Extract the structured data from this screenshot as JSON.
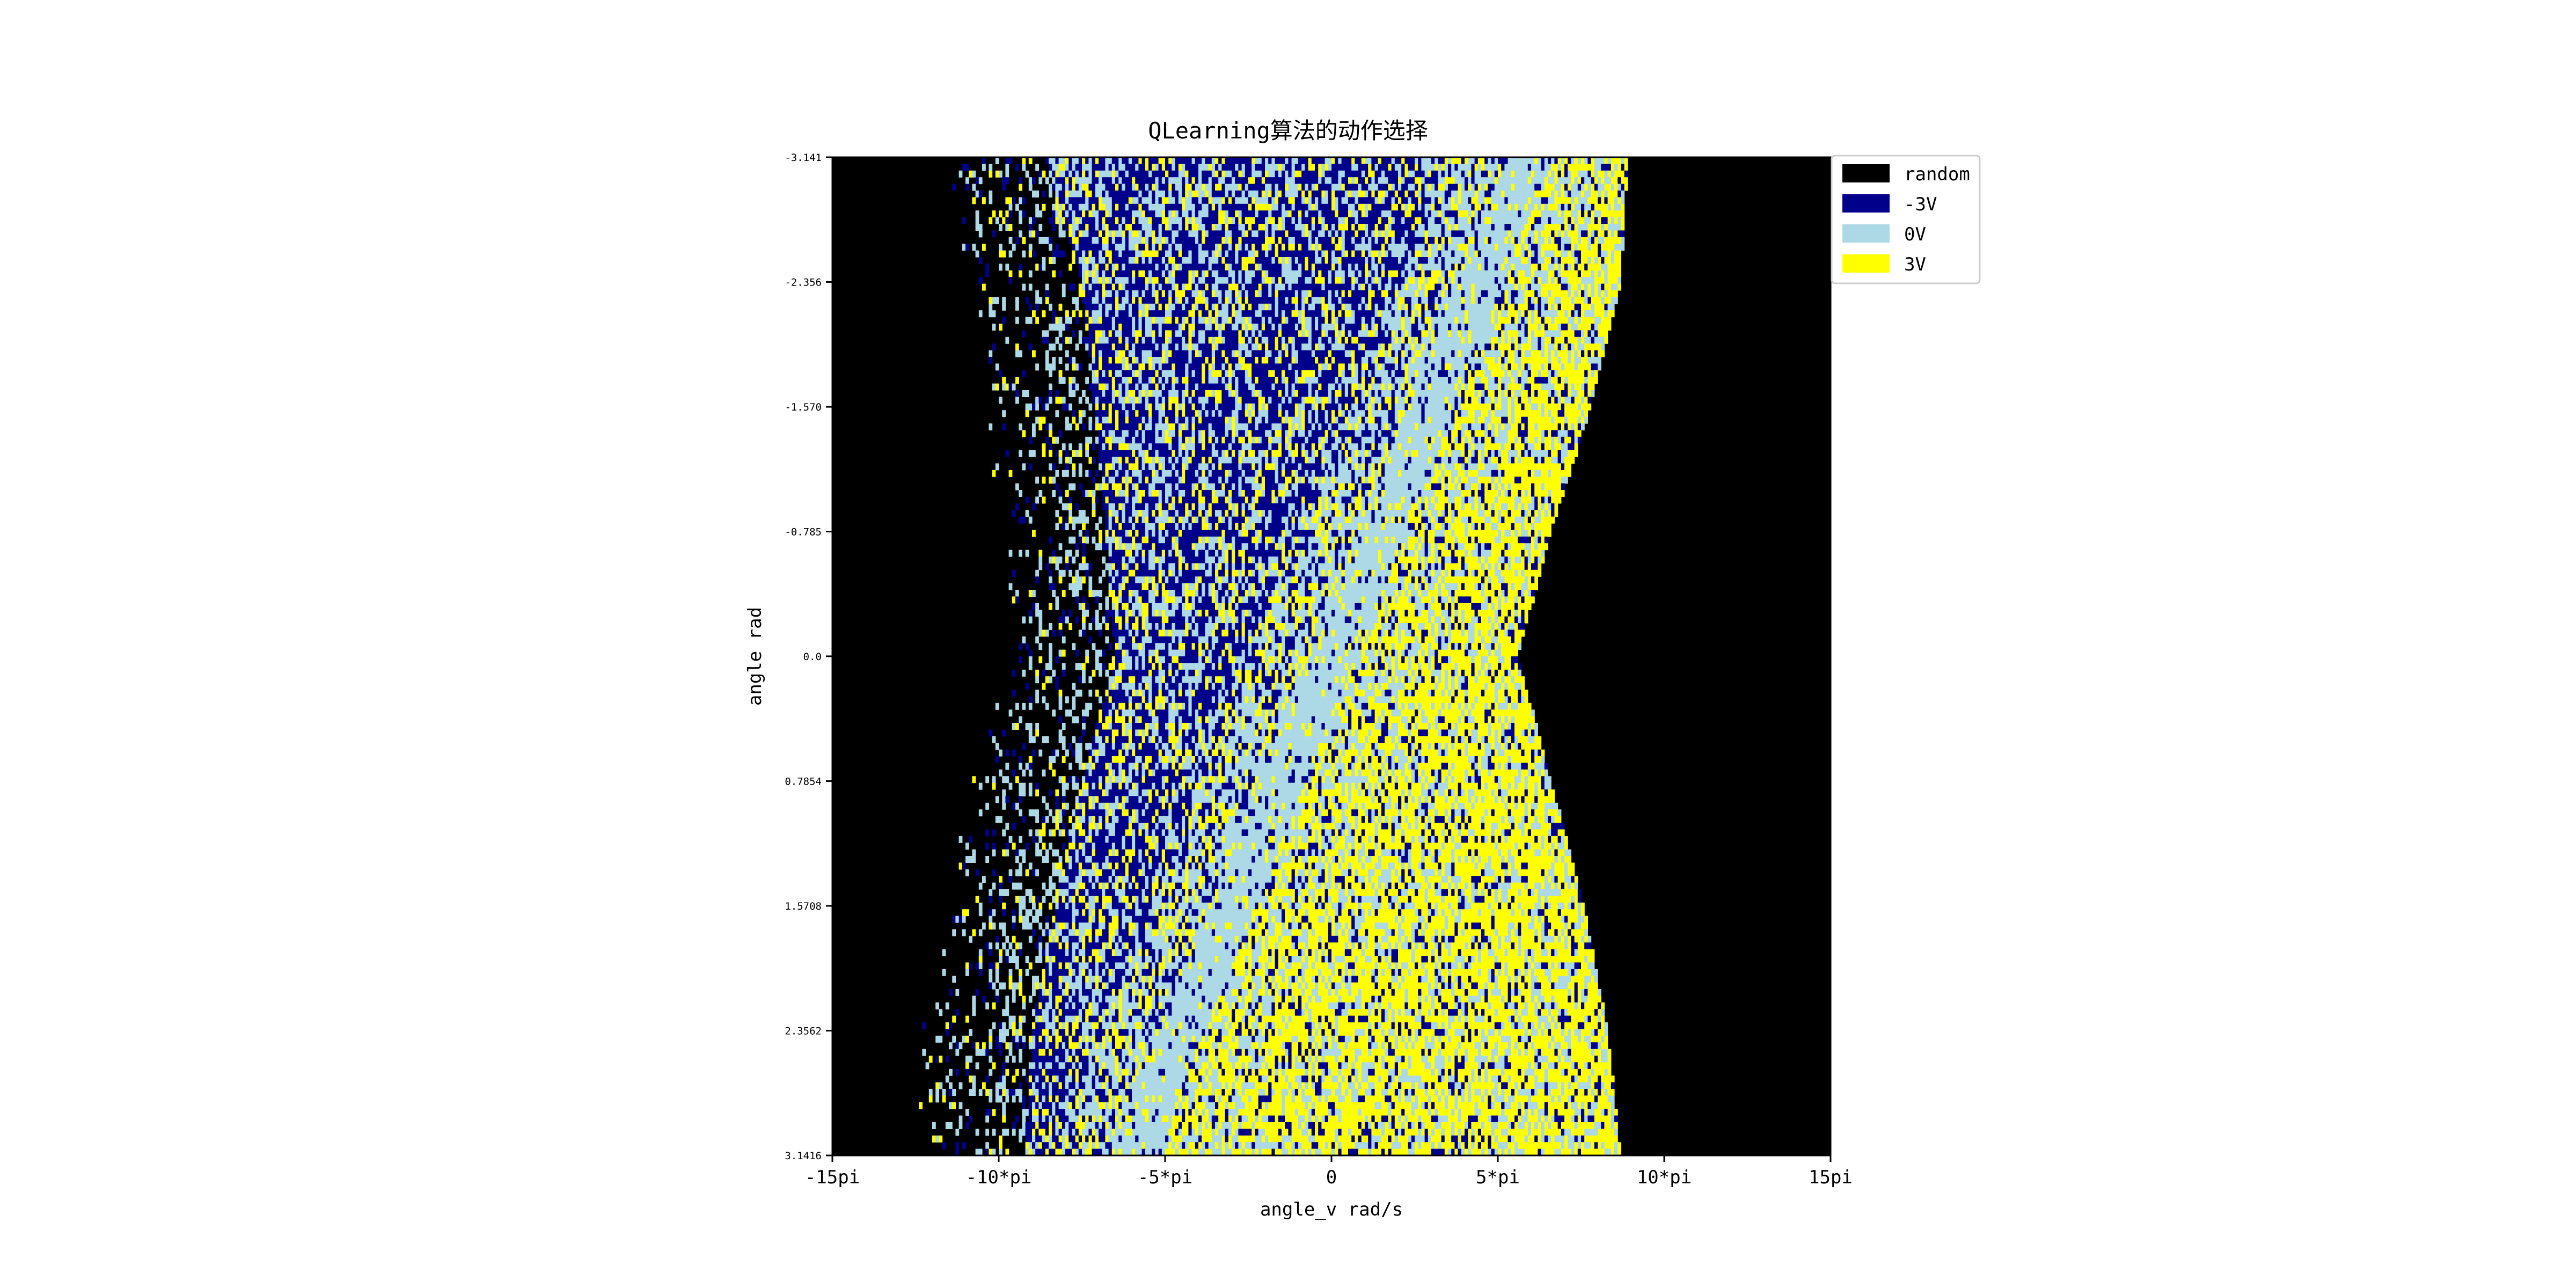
{
  "chart_data": {
    "type": "heatmap",
    "title": "QLearning算法的动作选择",
    "xlabel": "angle_v rad/s",
    "ylabel": "angle rad",
    "xlim": [
      -15,
      15
    ],
    "ylim": [
      -3.141,
      3.1416
    ],
    "y_inverted": true,
    "x_unit": "pi rad/s",
    "x_ticks": [
      {
        "value": -15,
        "label": "-15pi"
      },
      {
        "value": -10,
        "label": "-10*pi"
      },
      {
        "value": -5,
        "label": "-5*pi"
      },
      {
        "value": 0,
        "label": "0"
      },
      {
        "value": 5,
        "label": "5*pi"
      },
      {
        "value": 10,
        "label": "10*pi"
      },
      {
        "value": 15,
        "label": "15pi"
      }
    ],
    "y_ticks": [
      {
        "value": -3.141,
        "label": "-3.141"
      },
      {
        "value": -2.356,
        "label": "-2.356"
      },
      {
        "value": -1.57,
        "label": "-1.570"
      },
      {
        "value": -0.785,
        "label": "-0.785"
      },
      {
        "value": 0.0,
        "label": "0.0"
      },
      {
        "value": 0.7854,
        "label": "0.7854"
      },
      {
        "value": 1.5708,
        "label": "1.5708"
      },
      {
        "value": 2.3562,
        "label": "2.3562"
      },
      {
        "value": 3.1416,
        "label": "3.1416"
      }
    ],
    "legend": {
      "placement": "outside-top-right",
      "entries": [
        {
          "label": "random",
          "color": "#000000"
        },
        {
          "label": "-3V",
          "color": "#00008b"
        },
        {
          "label": "0V",
          "color": "#add8e6"
        },
        {
          "label": "3V",
          "color": "#ffff00"
        }
      ]
    },
    "categories": [
      "random",
      "-3V",
      "0V",
      "3V"
    ],
    "grid": false,
    "grid_resolution": {
      "x_bins": 300,
      "y_bins": 150
    },
    "region_profile": {
      "description_keys": [
        "angle",
        "left_visited_edge",
        "right_visited_edge"
      ],
      "points": [
        [
          -3.141,
          -11.6,
          8.9
        ],
        [
          -2.356,
          -10.5,
          8.7
        ],
        [
          -1.57,
          -10.1,
          7.8
        ],
        [
          -0.785,
          -9.8,
          6.6
        ],
        [
          0.0,
          -9.5,
          5.6
        ],
        [
          0.7854,
          -10.5,
          6.6
        ],
        [
          1.5708,
          -11.3,
          7.6
        ],
        [
          2.3562,
          -12.0,
          8.3
        ],
        [
          3.1416,
          -12.2,
          8.7
        ]
      ]
    }
  }
}
